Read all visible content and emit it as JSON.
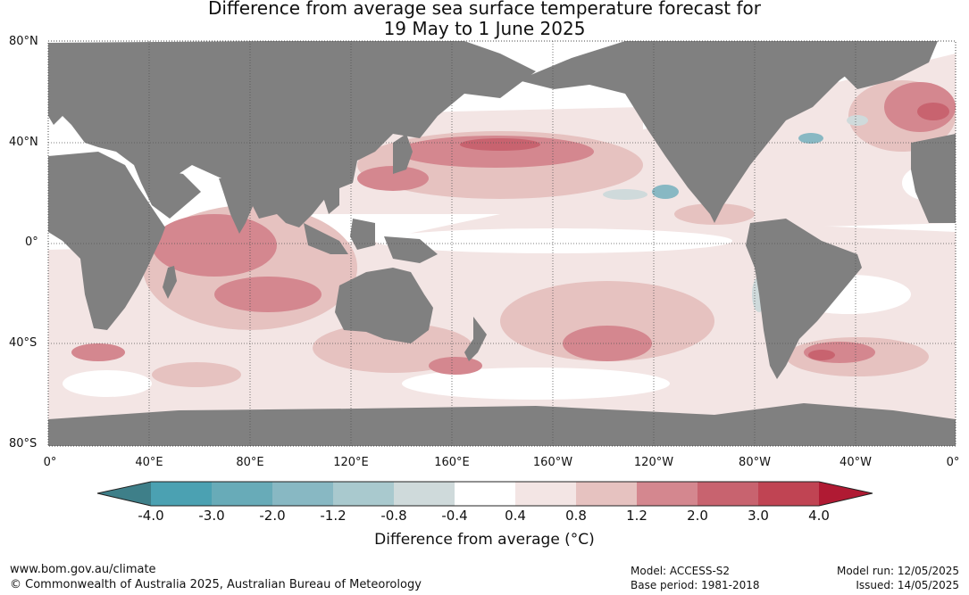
{
  "title": {
    "line1": "Difference from average sea surface temperature forecast for",
    "line2": "19 May to 1 June 2025"
  },
  "map": {
    "y_ticks": [
      "80°N",
      "40°N",
      "0°",
      "40°S",
      "80°S"
    ],
    "x_ticks": [
      "0°",
      "40°E",
      "80°E",
      "120°E",
      "160°E",
      "160°W",
      "120°W",
      "80°W",
      "40°W",
      "0°"
    ],
    "land_color": "#808080",
    "grid_style": "dotted"
  },
  "colorbar": {
    "label": "Difference from average (°C)",
    "tick_labels": [
      "-4.0",
      "-3.0",
      "-2.0",
      "-1.2",
      "-0.8",
      "-0.4",
      "0.4",
      "0.8",
      "1.2",
      "2.0",
      "3.0",
      "4.0"
    ],
    "colors": [
      "#3e7f89",
      "#4ba1b2",
      "#68abb8",
      "#88b8c3",
      "#a9c9ce",
      "#cfdadb",
      "#ffffff",
      "#f3e5e4",
      "#e6c2c0",
      "#d4878f",
      "#c8636f",
      "#c04453",
      "#b01a33"
    ]
  },
  "footer": {
    "website": "www.bom.gov.au/climate",
    "copyright": "© Commonwealth of Australia 2025, Australian Bureau of Meteorology",
    "model": "Model: ACCESS-S2",
    "base_period": "Base period: 1981-2018",
    "model_run": "Model run: 12/05/2025",
    "issued": "Issued: 14/05/2025"
  }
}
